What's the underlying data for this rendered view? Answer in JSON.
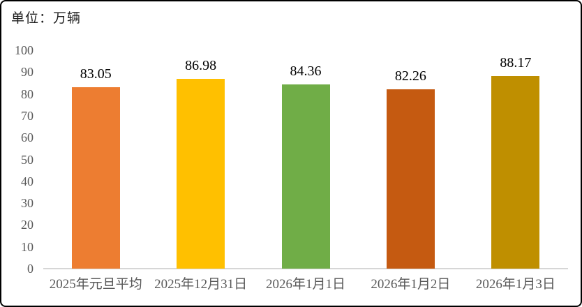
{
  "unit_label": "单位：万辆",
  "chart_data": {
    "type": "bar",
    "title": "单位：万辆",
    "categories": [
      "2025年元旦平均",
      "2025年12月31日",
      "2026年1月1日",
      "2026年1月2日",
      "2026年1月3日"
    ],
    "values": [
      83.05,
      86.98,
      84.36,
      82.26,
      88.17
    ],
    "value_labels": [
      "83.05",
      "86.98",
      "84.36",
      "82.26",
      "88.17"
    ],
    "bar_colors": [
      "#ED7D31",
      "#FFC000",
      "#70AD47",
      "#C55A11",
      "#BF8F00"
    ],
    "y_ticks": [
      0,
      10,
      20,
      30,
      40,
      50,
      60,
      70,
      80,
      90,
      100
    ],
    "ylim": [
      0,
      100
    ],
    "xlabel": "",
    "ylabel": "",
    "grid": false,
    "legend": "none",
    "axis_line_color": "#D6D6D6",
    "tick_label_color": "#595959",
    "value_label_color": "#000000"
  }
}
